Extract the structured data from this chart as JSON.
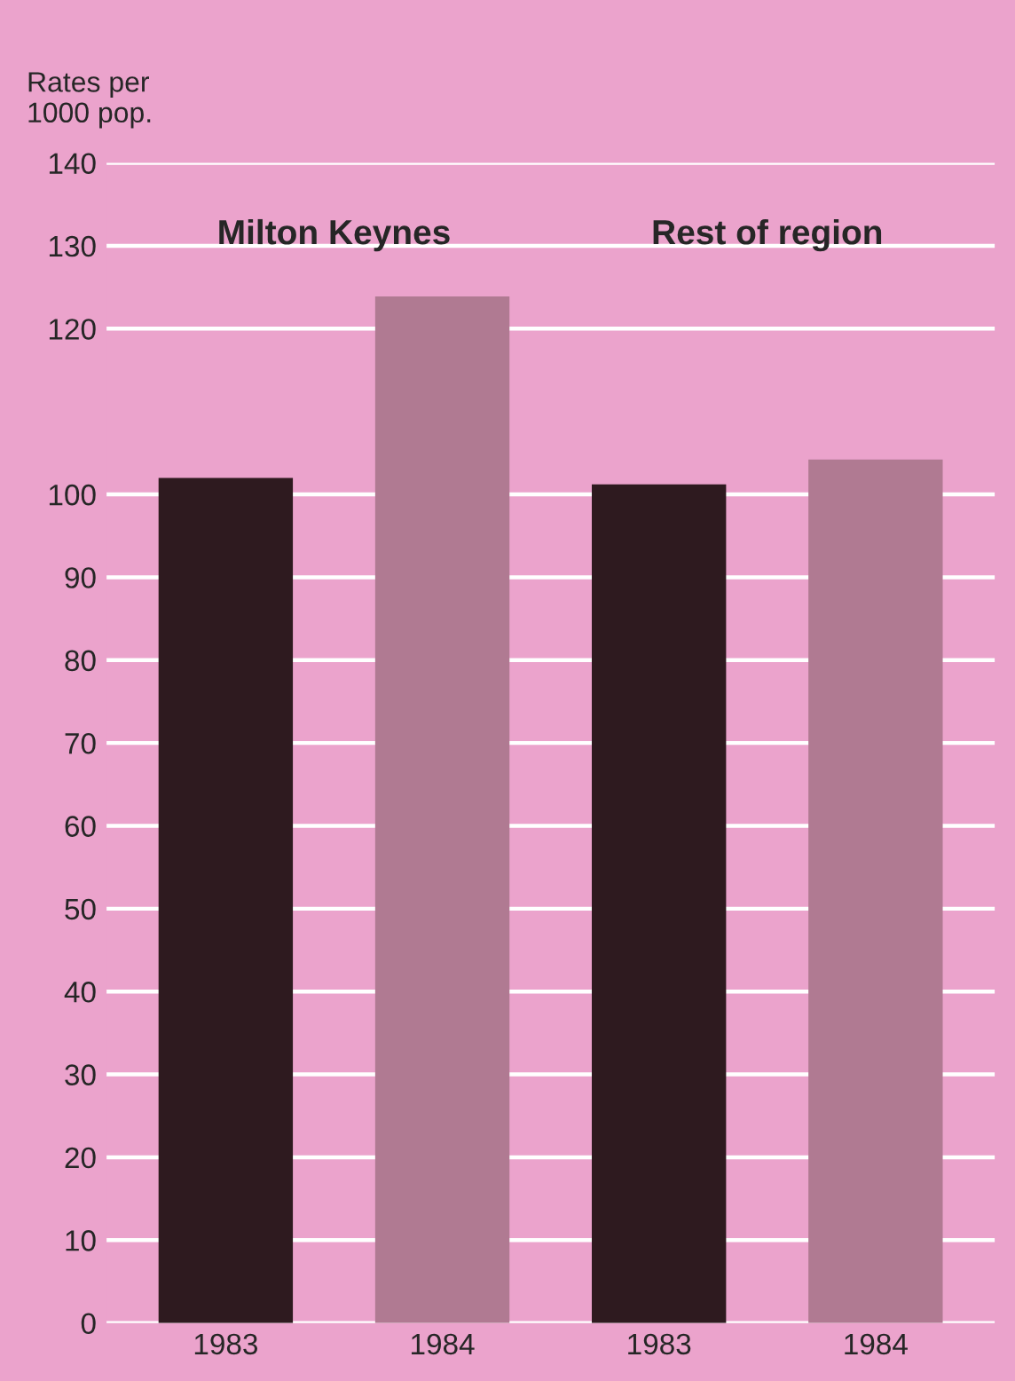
{
  "chart_data": {
    "type": "bar",
    "ylabel": "Rates per\n1000 pop.",
    "categories": [
      "1983",
      "1984",
      "1983",
      "1984"
    ],
    "values": [
      102,
      123.9,
      101.2,
      104.2
    ],
    "colors": [
      "#2e1a1f",
      "#b07a92",
      "#2e1a1f",
      "#b07a92"
    ],
    "annotations": [
      "Milton Keynes",
      "Rest of region"
    ],
    "ylim": [
      0,
      140
    ],
    "yticks": [
      0,
      10,
      20,
      30,
      40,
      50,
      60,
      70,
      80,
      90,
      100,
      120,
      130,
      140
    ],
    "grid": "y"
  }
}
